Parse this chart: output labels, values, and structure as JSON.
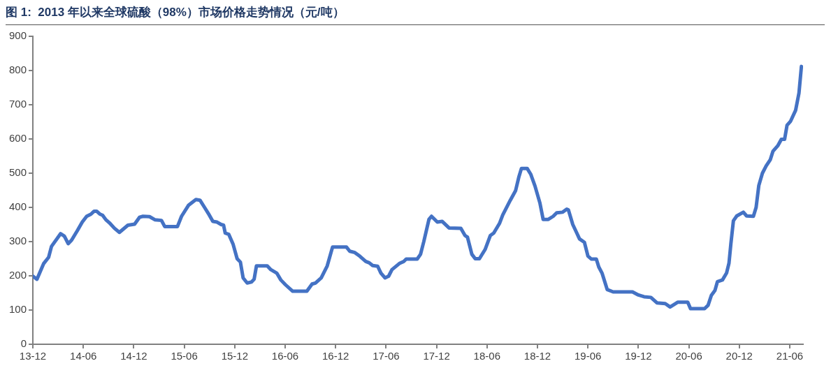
{
  "chart_data": {
    "type": "line",
    "title": "图 1:  2013 年以来全球硫酸（98%）市场价格走势情况（元/吨）",
    "x": [
      "2013-12-01",
      "2013-12-16",
      "2014-01-10",
      "2014-01-28",
      "2014-02-07",
      "2014-03-10",
      "2014-03-24",
      "2014-04-07",
      "2014-04-19",
      "2014-05-10",
      "2014-05-28",
      "2014-06-13",
      "2014-06-28",
      "2014-07-10",
      "2014-07-19",
      "2014-08-01",
      "2014-08-10",
      "2014-08-22",
      "2014-09-04",
      "2014-09-22",
      "2014-10-10",
      "2014-11-10",
      "2014-12-04",
      "2014-12-22",
      "2015-01-04",
      "2015-01-28",
      "2015-02-15",
      "2015-03-10",
      "2015-03-22",
      "2015-05-07",
      "2015-05-22",
      "2015-06-16",
      "2015-07-13",
      "2015-07-28",
      "2015-08-13",
      "2015-08-28",
      "2015-09-13",
      "2015-09-28",
      "2015-10-13",
      "2015-10-22",
      "2015-10-28",
      "2015-11-10",
      "2015-11-25",
      "2015-12-10",
      "2015-12-22",
      "2016-01-01",
      "2016-01-16",
      "2016-02-01",
      "2016-02-10",
      "2016-02-18",
      "2016-03-28",
      "2016-04-10",
      "2016-05-01",
      "2016-05-16",
      "2016-06-02",
      "2016-06-28",
      "2016-08-19",
      "2016-09-07",
      "2016-09-19",
      "2016-10-10",
      "2016-11-01",
      "2016-11-20",
      "2017-01-10",
      "2017-01-22",
      "2017-02-09",
      "2017-02-26",
      "2017-03-19",
      "2017-04-01",
      "2017-04-13",
      "2017-05-01",
      "2017-05-13",
      "2017-05-28",
      "2017-06-10",
      "2017-06-22",
      "2017-07-19",
      "2017-08-04",
      "2017-08-13",
      "2017-09-22",
      "2017-10-04",
      "2017-10-16",
      "2017-11-04",
      "2017-11-13",
      "2017-12-04",
      "2017-12-22",
      "2018-01-16",
      "2018-02-26",
      "2018-03-13",
      "2018-03-22",
      "2018-04-07",
      "2018-04-19",
      "2018-05-04",
      "2018-05-25",
      "2018-06-13",
      "2018-06-25",
      "2018-07-16",
      "2018-07-28",
      "2018-08-25",
      "2018-09-13",
      "2018-09-25",
      "2018-10-04",
      "2018-10-25",
      "2018-11-07",
      "2018-11-22",
      "2018-12-10",
      "2018-12-22",
      "2019-01-10",
      "2019-01-28",
      "2019-02-09",
      "2019-03-01",
      "2019-03-16",
      "2019-03-22",
      "2019-04-07",
      "2019-04-19",
      "2019-05-01",
      "2019-05-19",
      "2019-06-01",
      "2019-06-13",
      "2019-07-01",
      "2019-07-10",
      "2019-07-22",
      "2019-08-10",
      "2019-09-01",
      "2019-11-10",
      "2019-12-01",
      "2019-12-22",
      "2020-01-16",
      "2020-02-07",
      "2020-03-07",
      "2020-03-25",
      "2020-04-22",
      "2020-05-28",
      "2020-06-07",
      "2020-07-28",
      "2020-08-10",
      "2020-08-22",
      "2020-09-04",
      "2020-09-13",
      "2020-10-01",
      "2020-10-16",
      "2020-10-25",
      "2020-11-01",
      "2020-11-10",
      "2020-11-22",
      "2020-12-16",
      "2020-12-28",
      "2021-01-22",
      "2021-02-01",
      "2021-02-10",
      "2021-02-22",
      "2021-03-07",
      "2021-03-22",
      "2021-04-01",
      "2021-04-19",
      "2021-05-01",
      "2021-05-13",
      "2021-05-22",
      "2021-06-04",
      "2021-06-22",
      "2021-07-04",
      "2021-07-13"
    ],
    "series": [
      {
        "color": "#4472c4",
        "values": [
          199,
          190,
          236,
          254,
          286,
          323,
          316,
          294,
          304,
          332,
          357,
          374,
          380,
          389,
          389,
          380,
          377,
          364,
          355,
          339,
          327,
          348,
          351,
          371,
          374,
          373,
          364,
          362,
          344,
          344,
          374,
          406,
          423,
          421,
          401,
          382,
          359,
          357,
          350,
          348,
          325,
          321,
          293,
          250,
          240,
          194,
          179,
          182,
          190,
          229,
          229,
          218,
          208,
          188,
          174,
          155,
          155,
          176,
          179,
          194,
          229,
          284,
          284,
          272,
          268,
          257,
          242,
          238,
          230,
          228,
          208,
          194,
          199,
          218,
          236,
          242,
          249,
          249,
          263,
          300,
          365,
          374,
          357,
          359,
          340,
          339,
          318,
          313,
          263,
          250,
          250,
          277,
          318,
          325,
          353,
          378,
          421,
          449,
          490,
          514,
          514,
          497,
          463,
          413,
          365,
          365,
          374,
          384,
          386,
          395,
          393,
          350,
          329,
          308,
          298,
          258,
          249,
          249,
          226,
          208,
          160,
          153,
          153,
          144,
          139,
          137,
          121,
          119,
          109,
          123,
          123,
          104,
          104,
          114,
          143,
          157,
          183,
          188,
          208,
          237,
          294,
          361,
          375,
          386,
          375,
          374,
          400,
          464,
          500,
          521,
          539,
          564,
          581,
          599,
          599,
          640,
          652,
          684,
          734,
          812
        ]
      }
    ],
    "xlim": [
      "2013-12-01",
      "2021-07-19"
    ],
    "xticks": [
      {
        "value": "2013-12",
        "label": "13-12"
      },
      {
        "value": "2014-06",
        "label": "14-06"
      },
      {
        "value": "2014-12",
        "label": "14-12"
      },
      {
        "value": "2015-06",
        "label": "15-06"
      },
      {
        "value": "2015-12",
        "label": "15-12"
      },
      {
        "value": "2016-06",
        "label": "16-06"
      },
      {
        "value": "2016-12",
        "label": "16-12"
      },
      {
        "value": "2017-06",
        "label": "17-06"
      },
      {
        "value": "2017-12",
        "label": "17-12"
      },
      {
        "value": "2018-06",
        "label": "18-06"
      },
      {
        "value": "2018-12",
        "label": "18-12"
      },
      {
        "value": "2019-06",
        "label": "19-06"
      },
      {
        "value": "2019-12",
        "label": "19-12"
      },
      {
        "value": "2020-06",
        "label": "20-06"
      },
      {
        "value": "2020-12",
        "label": "20-12"
      },
      {
        "value": "2021-06",
        "label": "21-06"
      }
    ],
    "ylim": [
      0,
      900
    ],
    "yticks": [
      0,
      100,
      200,
      300,
      400,
      500,
      600,
      700,
      800,
      900
    ],
    "grid": false,
    "legend": false,
    "marker": "none",
    "line_style": "solid"
  }
}
